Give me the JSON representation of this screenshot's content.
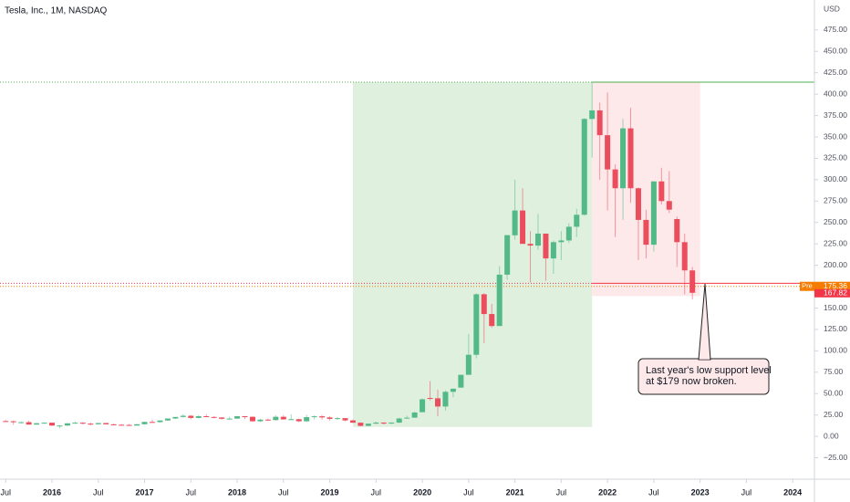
{
  "chart_data": {
    "type": "candlestick",
    "title": "Tesla, Inc., 1M, NASDAQ",
    "unit": "USD",
    "up_color": "#53b987",
    "down_color": "#eb4d5c",
    "x": [
      "2015-07",
      "2015-08",
      "2015-09",
      "2015-10",
      "2015-11",
      "2015-12",
      "2016-01",
      "2016-02",
      "2016-03",
      "2016-04",
      "2016-05",
      "2016-06",
      "2016-07",
      "2016-08",
      "2016-09",
      "2016-10",
      "2016-11",
      "2016-12",
      "2017-01",
      "2017-02",
      "2017-03",
      "2017-04",
      "2017-05",
      "2017-06",
      "2017-07",
      "2017-08",
      "2017-09",
      "2017-10",
      "2017-11",
      "2017-12",
      "2018-01",
      "2018-02",
      "2018-03",
      "2018-04",
      "2018-05",
      "2018-06",
      "2018-07",
      "2018-08",
      "2018-09",
      "2018-10",
      "2018-11",
      "2018-12",
      "2019-01",
      "2019-02",
      "2019-03",
      "2019-04",
      "2019-05",
      "2019-06",
      "2019-07",
      "2019-08",
      "2019-09",
      "2019-10",
      "2019-11",
      "2019-12",
      "2020-01",
      "2020-02",
      "2020-03",
      "2020-04",
      "2020-05",
      "2020-06",
      "2020-07",
      "2020-08",
      "2020-09",
      "2020-10",
      "2020-11",
      "2020-12",
      "2021-01",
      "2021-02",
      "2021-03",
      "2021-04",
      "2021-05",
      "2021-06",
      "2021-07",
      "2021-08",
      "2021-09",
      "2021-10",
      "2021-11",
      "2021-12",
      "2022-01",
      "2022-02",
      "2022-03",
      "2022-04",
      "2022-05",
      "2022-06",
      "2022-07",
      "2022-08",
      "2022-09",
      "2022-10",
      "2022-11",
      "2022-12"
    ],
    "open": [
      17.9,
      17.7,
      16.6,
      16.6,
      13.8,
      15.4,
      16.0,
      12.7,
      12.7,
      15.3,
      16.0,
      14.9,
      14.2,
      15.6,
      14.1,
      13.6,
      13.4,
      12.6,
      14.2,
      16.9,
      16.7,
      18.6,
      20.9,
      22.7,
      24.1,
      21.6,
      23.6,
      22.7,
      22.1,
      20.6,
      20.8,
      23.6,
      22.9,
      17.7,
      19.6,
      19.0,
      22.9,
      19.9,
      20.1,
      17.7,
      22.5,
      23.5,
      22.2,
      20.5,
      21.3,
      18.7,
      16.0,
      12.3,
      14.9,
      16.1,
      15.0,
      16.1,
      20.9,
      21.9,
      28.3,
      44.9,
      44.5,
      34.9,
      52.1,
      57.0,
      72.0,
      95.4,
      166.1,
      143.0,
      129.0,
      189.0,
      235.0,
      264.0,
      225.0,
      223.0,
      237.0,
      208.0,
      227.0,
      229.0,
      245.0,
      259.0,
      371.0,
      381.0,
      352.0,
      312.0,
      290.0,
      360.0,
      290.0,
      253.0,
      224.0,
      298.0,
      275.0,
      254.0,
      227.0,
      194.0
    ],
    "high": [
      19.1,
      18.5,
      17.5,
      18.4,
      15.8,
      16.3,
      16.0,
      13.2,
      15.5,
      17.2,
      16.3,
      16.0,
      15.7,
      15.7,
      14.9,
      14.4,
      14.4,
      14.4,
      17.1,
      19.3,
      18.8,
      21.0,
      22.7,
      25.8,
      25.0,
      24.8,
      25.9,
      23.8,
      22.5,
      22.9,
      23.9,
      23.7,
      23.3,
      20.6,
      20.8,
      24.6,
      24.8,
      25.8,
      20.7,
      25.2,
      24.6,
      25.0,
      23.5,
      22.7,
      21.3,
      19.7,
      16.4,
      15.0,
      17.4,
      16.5,
      16.7,
      22.0,
      24.2,
      29.0,
      44.4,
      64.6,
      54.6,
      53.8,
      56.0,
      72.0,
      119.7,
      167.5,
      167.5,
      155.0,
      199.0,
      235.3,
      300.0,
      290.0,
      240.0,
      260.0,
      237.0,
      229.0,
      240.0,
      249.0,
      266.0,
      372.0,
      414.0,
      390.0,
      402.0,
      318.0,
      371.0,
      384.0,
      291.0,
      265.0,
      298.0,
      314.0,
      310.0,
      257.0,
      237.0,
      198.0
    ],
    "low": [
      16.9,
      13.8,
      15.3,
      13.9,
      13.6,
      14.8,
      12.0,
      9.4,
      12.2,
      14.7,
      13.9,
      12.9,
      14.0,
      14.0,
      13.1,
      13.0,
      12.4,
      12.5,
      14.0,
      16.6,
      16.1,
      18.0,
      20.2,
      22.0,
      20.1,
      21.0,
      22.3,
      21.1,
      19.5,
      20.3,
      20.2,
      20.4,
      16.8,
      16.5,
      18.0,
      18.6,
      19.5,
      19.5,
      16.7,
      16.9,
      19.8,
      19.7,
      18.6,
      19.4,
      17.5,
      15.9,
      11.8,
      11.9,
      14.6,
      13.9,
      14.5,
      15.6,
      20.6,
      21.9,
      28.2,
      42.0,
      23.4,
      30.2,
      45.6,
      57.0,
      72.0,
      91.4,
      109.0,
      127.0,
      130.0,
      183.0,
      230.0,
      227.0,
      180.0,
      218.0,
      182.0,
      190.0,
      206.0,
      226.0,
      233.0,
      258.0,
      326.0,
      300.0,
      264.0,
      233.0,
      253.0,
      273.0,
      206.0,
      208.0,
      216.0,
      271.0,
      261.0,
      198.0,
      166.0,
      160.0
    ],
    "close": [
      17.7,
      16.6,
      16.6,
      13.8,
      15.4,
      16.0,
      12.7,
      12.7,
      15.3,
      16.0,
      14.9,
      14.2,
      15.6,
      14.1,
      13.6,
      13.4,
      12.6,
      14.2,
      16.9,
      16.7,
      18.6,
      20.9,
      22.7,
      24.1,
      21.6,
      23.6,
      22.7,
      22.1,
      20.6,
      20.8,
      23.6,
      22.9,
      17.7,
      19.6,
      19.0,
      22.9,
      19.9,
      20.1,
      17.7,
      22.5,
      23.5,
      22.2,
      20.5,
      21.3,
      18.7,
      16.0,
      12.3,
      14.9,
      16.1,
      15.0,
      16.1,
      20.9,
      21.9,
      27.9,
      43.4,
      44.5,
      34.9,
      52.1,
      55.7,
      72.0,
      95.4,
      166.1,
      143.0,
      129.0,
      189.0,
      235.2,
      264.0,
      225.0,
      223.0,
      237.0,
      208.0,
      227.0,
      229.0,
      245.0,
      259.0,
      371.0,
      381.0,
      352.0,
      312.0,
      290.0,
      360.0,
      290.0,
      253.0,
      224.0,
      298.0,
      275.0,
      265.0,
      227.0,
      194.0,
      167.82
    ],
    "ylim": [
      -50,
      510
    ],
    "yticks": [
      {
        "value": -25,
        "label": "−25.00"
      },
      {
        "value": 0,
        "label": "0.00"
      },
      {
        "value": 25,
        "label": "25.00"
      },
      {
        "value": 50,
        "label": "50.00"
      },
      {
        "value": 75,
        "label": "75.00"
      },
      {
        "value": 100,
        "label": "100.00"
      },
      {
        "value": 125,
        "label": "125.00"
      },
      {
        "value": 150,
        "label": "150.00"
      },
      {
        "value": 175,
        "label": "175.00"
      },
      {
        "value": 200,
        "label": "200.00"
      },
      {
        "value": 225,
        "label": "225.00"
      },
      {
        "value": 250,
        "label": "250.00"
      },
      {
        "value": 275,
        "label": "275.00"
      },
      {
        "value": 300,
        "label": "300.00"
      },
      {
        "value": 325,
        "label": "325.00"
      },
      {
        "value": 350,
        "label": "350.00"
      },
      {
        "value": 375,
        "label": "375.00"
      },
      {
        "value": 400,
        "label": "400.00"
      },
      {
        "value": 425,
        "label": "425.00"
      },
      {
        "value": 450,
        "label": "450.00"
      },
      {
        "value": 475,
        "label": "475.00"
      }
    ],
    "xticks": [
      {
        "value": "2015-07",
        "label": "Jul"
      },
      {
        "value": "2016-01",
        "label": "2016"
      },
      {
        "value": "2016-07",
        "label": "Jul"
      },
      {
        "value": "2017-01",
        "label": "2017"
      },
      {
        "value": "2017-07",
        "label": "Jul"
      },
      {
        "value": "2018-01",
        "label": "2018"
      },
      {
        "value": "2018-07",
        "label": "Jul"
      },
      {
        "value": "2019-01",
        "label": "2019"
      },
      {
        "value": "2019-07",
        "label": "Jul"
      },
      {
        "value": "2020-01",
        "label": "2020"
      },
      {
        "value": "2020-07",
        "label": "Jul"
      },
      {
        "value": "2021-01",
        "label": "2021"
      },
      {
        "value": "2021-07",
        "label": "Jul"
      },
      {
        "value": "2022-01",
        "label": "2022"
      },
      {
        "value": "2022-07",
        "label": "Jul"
      },
      {
        "value": "2023-01",
        "label": "2023"
      },
      {
        "value": "2023-07",
        "label": "Jul"
      },
      {
        "value": "2024-01",
        "label": "2024"
      }
    ],
    "zones": [
      {
        "x": [
          "2019-04",
          "2021-11"
        ],
        "y": [
          11,
          414
        ],
        "color": "#dff0df"
      },
      {
        "x": [
          "2021-11",
          "2023-01"
        ],
        "y": [
          164,
          414
        ],
        "color": "#fde9e9"
      }
    ],
    "levels": [
      {
        "value": 414,
        "color": "#4caf50"
      },
      {
        "value": 179,
        "color": "#f23645"
      }
    ],
    "premarket_label": "Pre",
    "premarket_price": 175.36,
    "premarket_color": "#f57c00",
    "last_price": 167.82,
    "last_color": "#f23645",
    "annotation": {
      "lines": [
        "Last year's low support level",
        "at $179 now broken."
      ]
    }
  }
}
